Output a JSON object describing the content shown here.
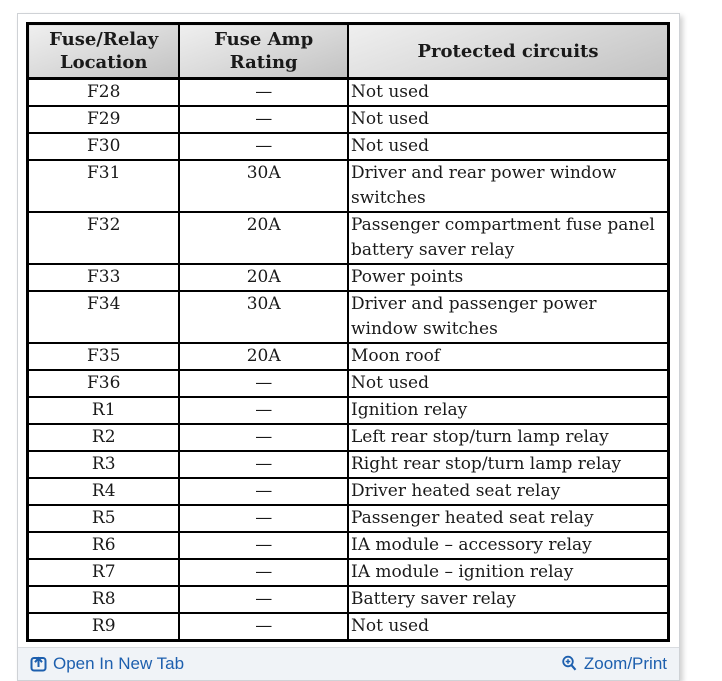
{
  "table": {
    "headers": [
      "Fuse/Relay\nLocation",
      "Fuse Amp\nRating",
      "Protected circuits"
    ],
    "rows": [
      {
        "location": "F28",
        "rating": "—",
        "circuits": "Not used"
      },
      {
        "location": "F29",
        "rating": "—",
        "circuits": "Not used"
      },
      {
        "location": "F30",
        "rating": "—",
        "circuits": "Not used"
      },
      {
        "location": "F31",
        "rating": "30A",
        "circuits": "Driver and rear power window switches"
      },
      {
        "location": "F32",
        "rating": "20A",
        "circuits": "Passenger compartment fuse panel battery saver relay"
      },
      {
        "location": "F33",
        "rating": "20A",
        "circuits": "Power points"
      },
      {
        "location": "F34",
        "rating": "30A",
        "circuits": "Driver and passenger power window switches"
      },
      {
        "location": "F35",
        "rating": "20A",
        "circuits": "Moon roof"
      },
      {
        "location": "F36",
        "rating": "—",
        "circuits": "Not used"
      },
      {
        "location": "R1",
        "rating": "—",
        "circuits": "Ignition relay"
      },
      {
        "location": "R2",
        "rating": "—",
        "circuits": "Left rear stop/turn lamp relay"
      },
      {
        "location": "R3",
        "rating": "—",
        "circuits": "Right rear stop/turn lamp relay"
      },
      {
        "location": "R4",
        "rating": "—",
        "circuits": "Driver heated seat relay"
      },
      {
        "location": "R5",
        "rating": "—",
        "circuits": "Passenger heated seat relay"
      },
      {
        "location": "R6",
        "rating": "—",
        "circuits": "IA module – accessory relay"
      },
      {
        "location": "R7",
        "rating": "—",
        "circuits": "IA module – ignition relay"
      },
      {
        "location": "R8",
        "rating": "—",
        "circuits": "Battery saver relay"
      },
      {
        "location": "R9",
        "rating": "—",
        "circuits": "Not used"
      }
    ]
  },
  "footer": {
    "open_in_new_tab_label": "Open In New Tab",
    "zoom_print_label": "Zoom/Print"
  },
  "colors": {
    "link_blue": "#1d5fae",
    "header_fill_top": "#efefef",
    "header_fill_bottom": "#c2c2c2",
    "table_border": "#000000",
    "footer_background": "#f0f3f7",
    "container_border": "#cfd2d6"
  }
}
